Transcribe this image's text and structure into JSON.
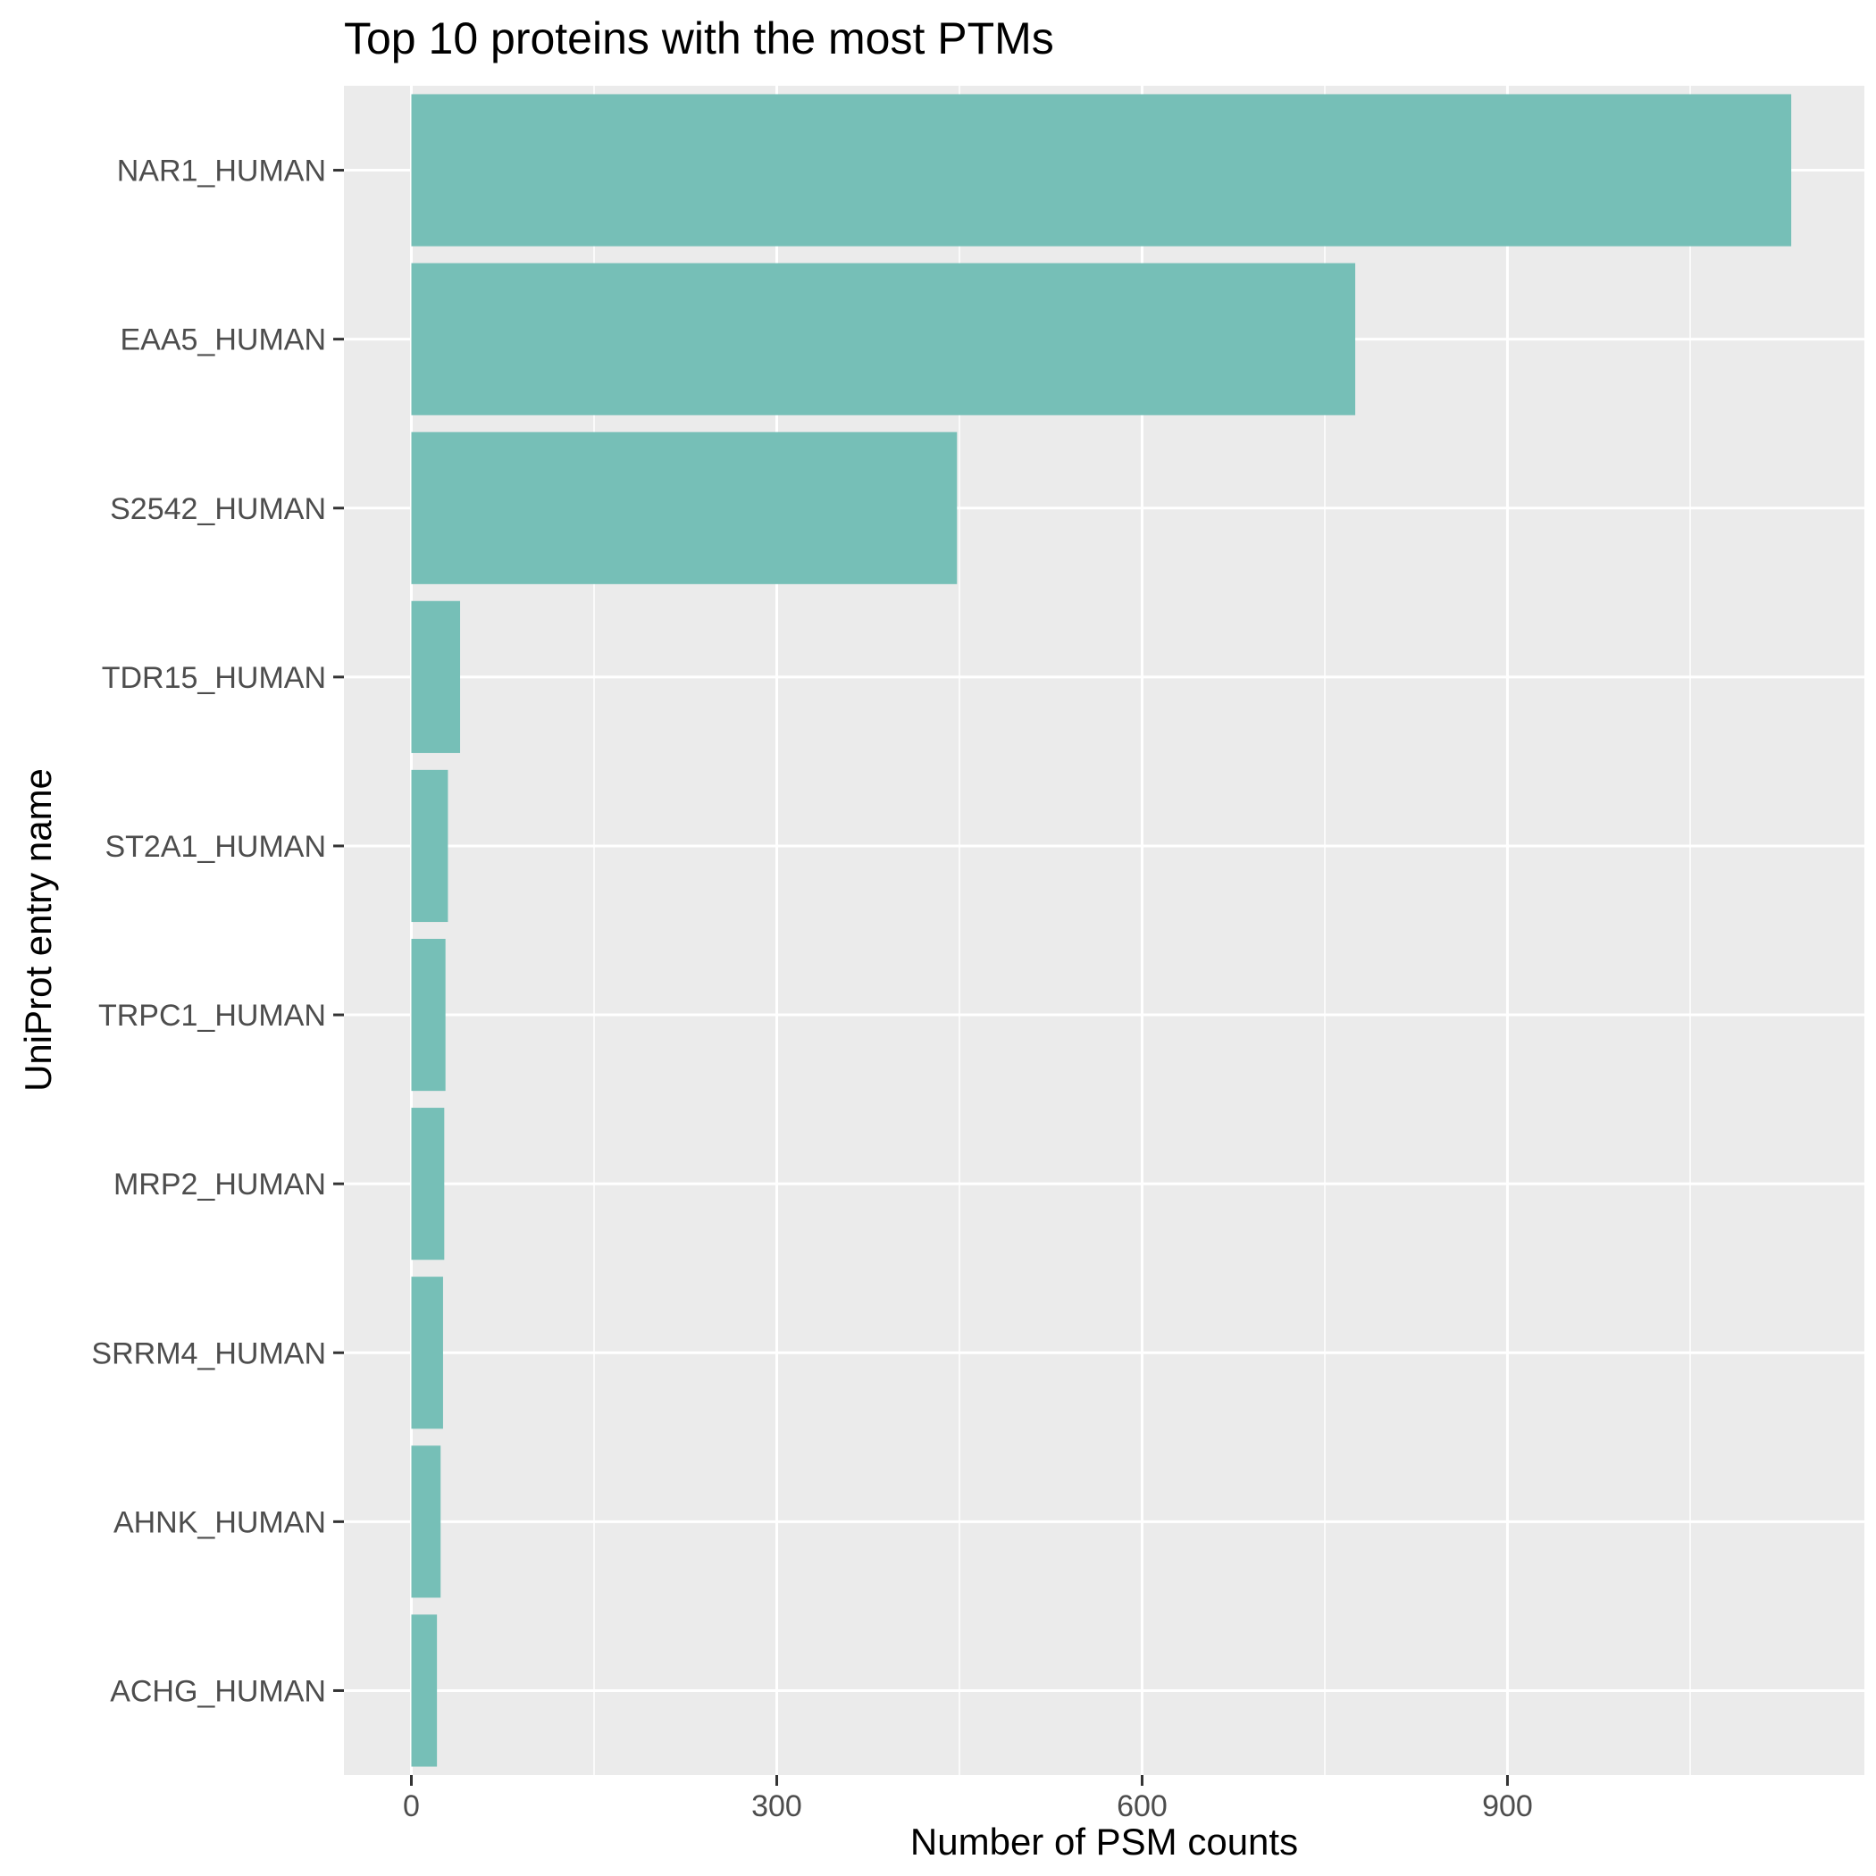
{
  "chart_data": {
    "type": "bar",
    "orientation": "horizontal",
    "title": "Top 10 proteins with the most PTMs",
    "xlabel": "Number of PSM counts",
    "ylabel": "UniProt entry name",
    "categories": [
      "NAR1_HUMAN",
      "EAA5_HUMAN",
      "S2542_HUMAN",
      "TDR15_HUMAN",
      "ST2A1_HUMAN",
      "TRPC1_HUMAN",
      "MRP2_HUMAN",
      "SRRM4_HUMAN",
      "AHNK_HUMAN",
      "ACHG_HUMAN"
    ],
    "values": [
      1133,
      775,
      448,
      40,
      30,
      28,
      27,
      26,
      24,
      21
    ],
    "xlim": [
      -56,
      1190
    ],
    "xticks": [
      0,
      300,
      600,
      900
    ],
    "grid": true,
    "bar_color": "#76bfb7",
    "panel_color": "#ebebeb",
    "grid_color": "#ffffff"
  }
}
